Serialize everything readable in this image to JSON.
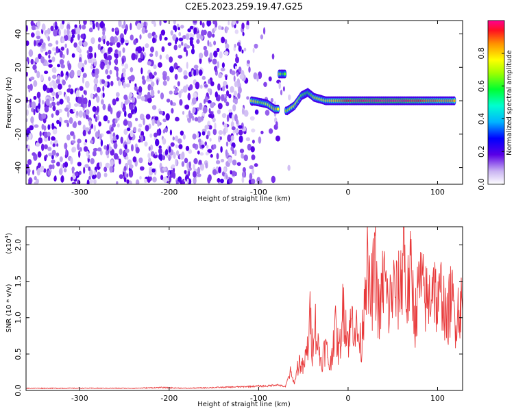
{
  "title": "C2E5.2023.259.19.47.G25",
  "chart_data": [
    {
      "type": "heatmap",
      "xlabel": "Height of straight line (km)",
      "ylabel": "Frequency (Hz)",
      "xlim": [
        -360,
        128
      ],
      "ylim": [
        -50,
        48
      ],
      "x_ticks": [
        "-300",
        "-200",
        "-100",
        "0",
        "100"
      ],
      "x_tick_values": [
        -300,
        -200,
        -100,
        0,
        100
      ],
      "y_ticks": [
        "-40",
        "-20",
        "0",
        "20",
        "40"
      ],
      "y_tick_values": [
        -40,
        -20,
        0,
        20,
        40
      ],
      "noise_region_x": [
        -360,
        -65
      ],
      "signal_track": [
        {
          "x": -108,
          "y": 0,
          "a": 0.8
        },
        {
          "x": -98,
          "y": -1,
          "a": 0.65
        },
        {
          "x": -90,
          "y": -2,
          "a": 0.75
        },
        {
          "x": -82,
          "y": -5,
          "a": 0.85
        },
        {
          "x": -72,
          "y": 16,
          "a": 0.6
        },
        {
          "x": -68,
          "y": -6,
          "a": 0.7
        },
        {
          "x": -60,
          "y": -3,
          "a": 0.8
        },
        {
          "x": -52,
          "y": 3,
          "a": 0.65
        },
        {
          "x": -45,
          "y": 5,
          "a": 0.6
        },
        {
          "x": -38,
          "y": 2,
          "a": 0.7
        },
        {
          "x": -25,
          "y": 0,
          "a": 0.75
        },
        {
          "x": 0,
          "y": 0,
          "a": 0.95
        },
        {
          "x": 30,
          "y": 0,
          "a": 1.0
        },
        {
          "x": 60,
          "y": 0,
          "a": 1.0
        },
        {
          "x": 90,
          "y": 0,
          "a": 0.9
        },
        {
          "x": 120,
          "y": 0,
          "a": 0.85
        }
      ],
      "colorbar": {
        "label": "Normalized spectral amplitude",
        "ticks": [
          "0.0",
          "0.2",
          "0.4",
          "0.6",
          "0.8"
        ],
        "tick_values": [
          0.0,
          0.2,
          0.4,
          0.6,
          0.8
        ],
        "range": [
          0,
          1
        ]
      }
    },
    {
      "type": "line",
      "xlabel": "Height of straight line (km)",
      "ylabel": "SNR (10 * v/v)",
      "y_multiplier": "(x10",
      "y_multiplier_exp": "4",
      "y_multiplier_close": ")",
      "xlim": [
        -360,
        128
      ],
      "ylim": [
        0,
        2.25
      ],
      "x_ticks": [
        "-300",
        "-200",
        "-100",
        "0",
        "100"
      ],
      "x_tick_values": [
        -300,
        -200,
        -100,
        0,
        100
      ],
      "y_ticks": [
        "0.0",
        "0.5",
        "1.0",
        "1.5",
        "2.0"
      ],
      "y_tick_values": [
        0.0,
        0.5,
        1.0,
        1.5,
        2.0
      ],
      "color": "#e8393a",
      "series": [
        {
          "x": [
            -360,
            -330,
            -300,
            -270,
            -240,
            -210,
            -180,
            -150,
            -120,
            -100,
            -90,
            -80,
            -70,
            -65,
            -60,
            -55,
            -50,
            -45,
            -42,
            -40,
            -38,
            -35,
            -30,
            -25,
            -20,
            -15,
            -10,
            -5,
            0,
            5,
            10,
            15,
            20,
            25,
            30,
            35,
            40,
            45,
            50,
            55,
            60,
            62,
            65,
            70,
            75,
            80,
            85,
            90,
            95,
            100,
            105,
            110,
            115,
            120,
            125,
            128
          ],
          "values": [
            0.03,
            0.03,
            0.03,
            0.03,
            0.03,
            0.04,
            0.03,
            0.04,
            0.05,
            0.06,
            0.06,
            0.08,
            0.05,
            0.25,
            0.1,
            0.4,
            0.3,
            0.6,
            1.05,
            0.5,
            1.1,
            0.7,
            0.4,
            0.6,
            0.3,
            0.9,
            0.5,
            1.2,
            0.7,
            1.0,
            0.8,
            0.6,
            1.8,
            1.2,
            1.7,
            1.0,
            1.6,
            1.1,
            1.4,
            1.3,
            1.5,
            2.25,
            1.2,
            1.6,
            1.0,
            1.5,
            1.3,
            1.2,
            1.6,
            1.1,
            1.4,
            0.9,
            1.3,
            1.0,
            1.2,
            1.1
          ]
        }
      ]
    }
  ]
}
